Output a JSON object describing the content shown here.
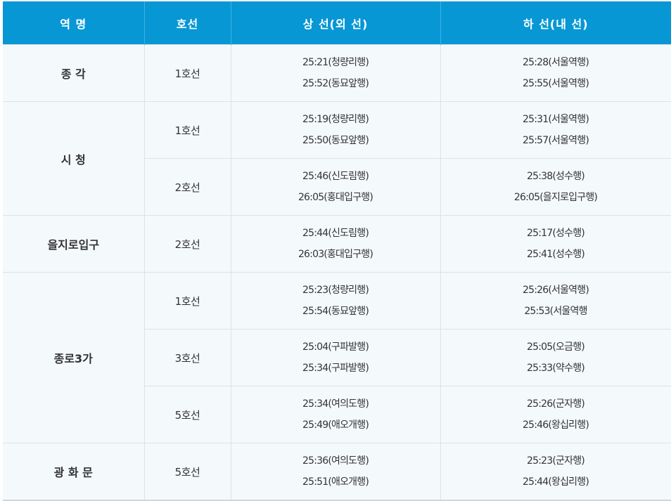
{
  "header": {
    "station": "역 명",
    "line": "호선",
    "up": "상 선(외 선)",
    "down": "하 선(내 선)"
  },
  "rows": [
    {
      "station": "종 각",
      "line": "1호선",
      "up": [
        "25:21(청량리행)",
        "25:52(동묘앞행)"
      ],
      "down": [
        "25:28(서울역행)",
        "25:55(서울역행)"
      ]
    },
    {
      "station": "시 청",
      "line": "1호선",
      "up": [
        "25:19(청량리행)",
        "25:50(동묘앞행)"
      ],
      "down": [
        "25:31(서울역행)",
        "25:57(서울역행)"
      ]
    },
    {
      "line": "2호선",
      "up": [
        "25:46(신도림행)",
        "26:05(홍대입구행)"
      ],
      "down": [
        "25:38(성수행)",
        "26:05(을지로입구행)"
      ]
    },
    {
      "station": "을지로입구",
      "line": "2호선",
      "up": [
        "25:44(신도림행)",
        "26:03(홍대입구행)"
      ],
      "down": [
        "25:17(성수행)",
        "25:41(성수행)"
      ]
    },
    {
      "station": "종로3가",
      "line": "1호선",
      "up": [
        "25:23(청량리행)",
        "25:54(동묘앞행)"
      ],
      "down": [
        "25:26(서울역행)",
        "25:53(서울역행"
      ]
    },
    {
      "line": "3호선",
      "up": [
        "25:04(구파발행)",
        "25:34(구파발행)"
      ],
      "down": [
        "25:05(오금행)",
        "25:33(약수행)"
      ]
    },
    {
      "line": "5호선",
      "up": [
        "25:34(여의도행)",
        "25:49(애오개행)"
      ],
      "down": [
        "25:26(군자행)",
        "25:46(왕십리행)"
      ]
    },
    {
      "station": "광 화 문",
      "line": "5호선",
      "up": [
        "25:36(여의도행)",
        "25:51(애오개행)"
      ],
      "down": [
        "25:23(군자행)",
        "25:44(왕십리행)"
      ]
    }
  ],
  "colors": {
    "header_bg": "#0797d5",
    "cell_bg": "#f4f9fc",
    "border": "#dde2e6"
  }
}
